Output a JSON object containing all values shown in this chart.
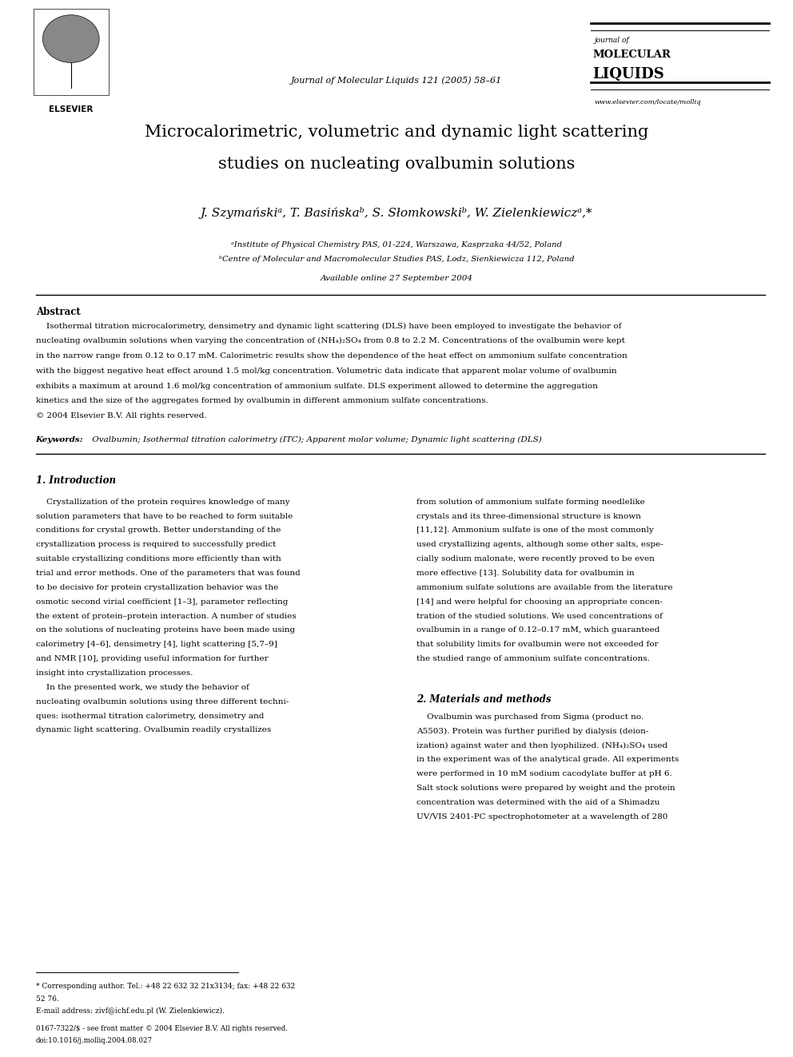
{
  "page_width": 9.92,
  "page_height": 13.23,
  "bg_color": "#ffffff",
  "header": {
    "journal_center": "Journal of Molecular Liquids 121 (2005) 58–61",
    "journal_name_line1": "journal of",
    "journal_name_line2": "MOLECULAR",
    "journal_name_line3": "LIQUIDS",
    "website": "www.elsevier.com/locate/molliq"
  },
  "title_line1": "Microcalorimetric, volumetric and dynamic light scattering",
  "title_line2": "studies on nucleating ovalbumin solutions",
  "authors": "J. Szymańskiᵃ, T. Basińskaᵇ, S. Słomkowskiᵇ, W. Zielenkiewiczᵃ,*",
  "affil_a": "ᵃInstitute of Physical Chemistry PAS, 01-224, Warszawa, Kasprzaka 44/52, Poland",
  "affil_b": "ᵇCentre of Molecular and Macromolecular Studies PAS, Lodz, Sienkiewicza 112, Poland",
  "available": "Available online 27 September 2004",
  "abstract_title": "Abstract",
  "abstract_text_lines": [
    "    Isothermal titration microcalorimetry, densimetry and dynamic light scattering (DLS) have been employed to investigate the behavior of",
    "nucleating ovalbumin solutions when varying the concentration of (NH₄)₂SO₄ from 0.8 to 2.2 M. Concentrations of the ovalbumin were kept",
    "in the narrow range from 0.12 to 0.17 mM. Calorimetric results show the dependence of the heat effect on ammonium sulfate concentration",
    "with the biggest negative heat effect around 1.5 mol/kg concentration. Volumetric data indicate that apparent molar volume of ovalbumin",
    "exhibits a maximum at around 1.6 mol/kg concentration of ammonium sulfate. DLS experiment allowed to determine the aggregation",
    "kinetics and the size of the aggregates formed by ovalbumin in different ammonium sulfate concentrations.",
    "© 2004 Elsevier B.V. All rights reserved."
  ],
  "keywords_label": "Keywords:",
  "keywords_text": " Ovalbumin; Isothermal titration calorimetry (ITC); Apparent molar volume; Dynamic light scattering (DLS)",
  "section1_title": "1. Introduction",
  "section1_col1_lines": [
    "    Crystallization of the protein requires knowledge of many",
    "solution parameters that have to be reached to form suitable",
    "conditions for crystal growth. Better understanding of the",
    "crystallization process is required to successfully predict",
    "suitable crystallizing conditions more efficiently than with",
    "trial and error methods. One of the parameters that was found",
    "to be decisive for protein crystallization behavior was the",
    "osmotic second virial coefficient [1–3], parameter reflecting",
    "the extent of protein–protein interaction. A number of studies",
    "on the solutions of nucleating proteins have been made using",
    "calorimetry [4–6], densimetry [4], light scattering [5,7–9]",
    "and NMR [10], providing useful information for further",
    "insight into crystallization processes.",
    "    In the presented work, we study the behavior of",
    "nucleating ovalbumin solutions using three different techni-",
    "ques: isothermal titration calorimetry, densimetry and",
    "dynamic light scattering. Ovalbumin readily crystallizes"
  ],
  "section1_col2_lines": [
    "from solution of ammonium sulfate forming needlelike",
    "crystals and its three-dimensional structure is known",
    "[11,12]. Ammonium sulfate is one of the most commonly",
    "used crystallizing agents, although some other salts, espe-",
    "cially sodium malonate, were recently proved to be even",
    "more effective [13]. Solubility data for ovalbumin in",
    "ammonium sulfate solutions are available from the literature",
    "[14] and were helpful for choosing an appropriate concen-",
    "tration of the studied solutions. We used concentrations of",
    "ovalbumin in a range of 0.12–0.17 mM, which guaranteed",
    "that solubility limits for ovalbumin were not exceeded for",
    "the studied range of ammonium sulfate concentrations."
  ],
  "section2_title": "2. Materials and methods",
  "section2_col2_lines": [
    "    Ovalbumin was purchased from Sigma (product no.",
    "A5503). Protein was further purified by dialysis (deion-",
    "ization) against water and then lyophilized. (NH₄)₂SO₄ used",
    "in the experiment was of the analytical grade. All experiments",
    "were performed in 10 mM sodium cacodylate buffer at pH 6.",
    "Salt stock solutions were prepared by weight and the protein",
    "concentration was determined with the aid of a Shimadzu",
    "UV/VIS 2401-PC spectrophotometer at a wavelength of 280"
  ],
  "footnote_star": "* Corresponding author. Tel.: +48 22 632 32 21x3134; fax: +48 22 632",
  "footnote_star2": "52 76.",
  "footnote_email": "E-mail address: zivf@ichf.edu.pl (W. Zielenkiewicz).",
  "footer_left": "0167-7322/$ - see front matter © 2004 Elsevier B.V. All rights reserved.",
  "footer_doi": "doi:10.1016/j.molliq.2004.08.027"
}
